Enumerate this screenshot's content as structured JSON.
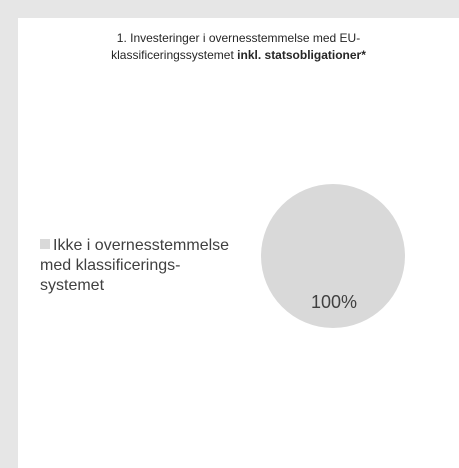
{
  "chart_data": {
    "type": "pie",
    "title_parts": {
      "line1": "1. Investeringer i overnesstemmelse med EU-",
      "line2_regular": "klassificeringssystemet ",
      "line2_bold_a": "inkl.",
      "line2_space": " ",
      "line2_bold_b": "statsobligationer*"
    },
    "slices": [
      {
        "label_lines": [
          "Ikke i overnesstemmelse",
          "med klassificerings-",
          "systemet"
        ],
        "value": 100,
        "value_label": "100%",
        "color": "#d9d9d9"
      }
    ],
    "legend_position": "left"
  }
}
